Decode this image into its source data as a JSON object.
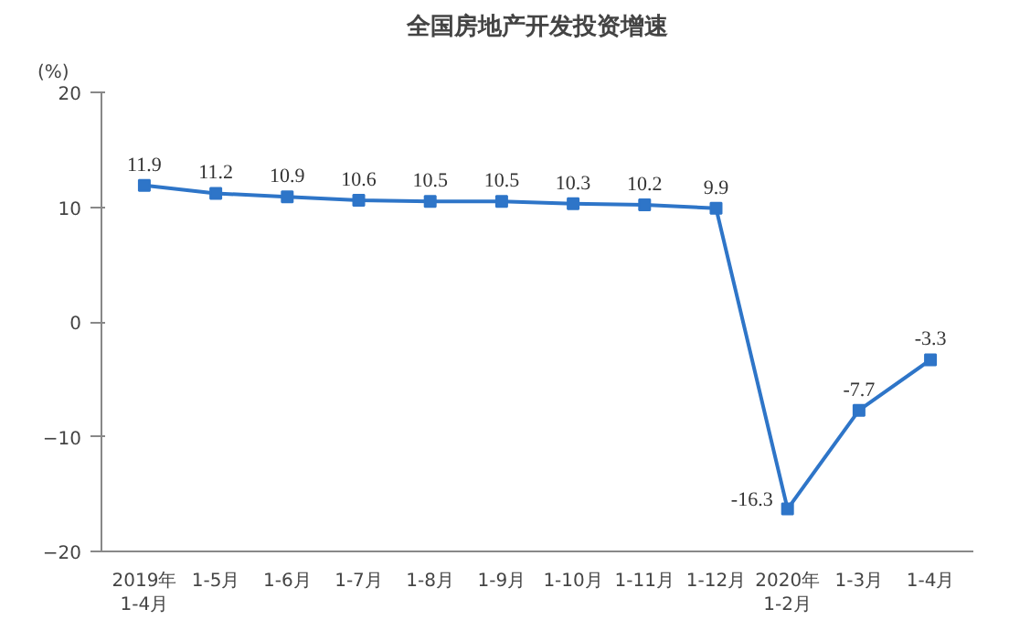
{
  "chart_data": {
    "type": "line",
    "title": "全国房地产开发投资增速",
    "ylabel": "(%)",
    "categories": [
      "2019年\n1-4月",
      "1-5月",
      "1-6月",
      "1-7月",
      "1-8月",
      "1-9月",
      "1-10月",
      "1-11月",
      "1-12月",
      "2020年\n1-2月",
      "1-3月",
      "1-4月"
    ],
    "series": [
      {
        "color": "#2e75c8",
        "values": [
          11.9,
          11.2,
          10.9,
          10.6,
          10.5,
          10.5,
          10.3,
          10.2,
          9.9,
          -16.3,
          -7.7,
          -3.3
        ]
      }
    ],
    "ylim": [
      -20,
      20
    ],
    "yticks": [
      -20,
      -10,
      0,
      10,
      20
    ],
    "grid": false,
    "marker": "square",
    "line_style": "solid",
    "data_labels": true
  }
}
